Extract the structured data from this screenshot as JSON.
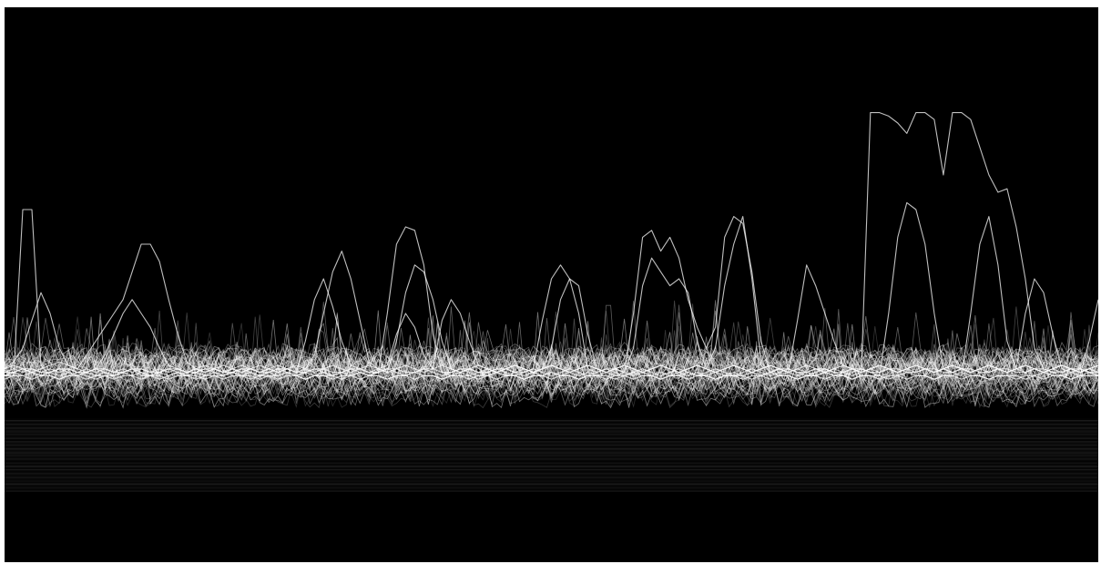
{
  "chart_data": {
    "type": "line",
    "title": "",
    "xlabel": "",
    "ylabel": "",
    "grid": false,
    "legend": "none",
    "x_range": [
      0,
      120
    ],
    "y_range": [
      0,
      1
    ],
    "colors": {
      "background": "#000000",
      "line": "#ffffff"
    },
    "series": [
      {
        "values": [
          0.12,
          0.12,
          0.6,
          0.6,
          0.15,
          0.12,
          0.11,
          0.12,
          0.13,
          0.12,
          0.11,
          0.12,
          0.12,
          0.13,
          0.14,
          0.12,
          0.12,
          0.11,
          0.12,
          0.13,
          0.12,
          0.12,
          0.11,
          0.12,
          0.12,
          0.13,
          0.12,
          0.12,
          0.11,
          0.12,
          0.12,
          0.13,
          0.12,
          0.11,
          0.12,
          0.12,
          0.12,
          0.11,
          0.12,
          0.13,
          0.12,
          0.12,
          0.11,
          0.12,
          0.12,
          0.13,
          0.12,
          0.12,
          0.11,
          0.12,
          0.12,
          0.12,
          0.11,
          0.12,
          0.13,
          0.12,
          0.12,
          0.11,
          0.12,
          0.12,
          0.13,
          0.12,
          0.12,
          0.11,
          0.12,
          0.12,
          0.12,
          0.11,
          0.12,
          0.13,
          0.12,
          0.12,
          0.11,
          0.12,
          0.12,
          0.13,
          0.12,
          0.12,
          0.11,
          0.12,
          0.12,
          0.12,
          0.11,
          0.12,
          0.13,
          0.12,
          0.12,
          0.11,
          0.12,
          0.12,
          0.13,
          0.12,
          0.12,
          0.11,
          0.12,
          0.12,
          0.12,
          0.11,
          0.12,
          0.13,
          0.12,
          0.12,
          0.11,
          0.12,
          0.12,
          0.13,
          0.12,
          0.12,
          0.11,
          0.12,
          0.12,
          0.12,
          0.11,
          0.12,
          0.13,
          0.12,
          0.12,
          0.11,
          0.12,
          0.12,
          0.12
        ]
      },
      {
        "values": [
          0.14,
          0.15,
          0.14,
          0.13,
          0.14,
          0.15,
          0.16,
          0.15,
          0.14,
          0.18,
          0.22,
          0.26,
          0.3,
          0.34,
          0.42,
          0.5,
          0.5,
          0.45,
          0.34,
          0.24,
          0.16,
          0.14,
          0.13,
          0.14,
          0.15,
          0.14,
          0.13,
          0.14,
          0.15,
          0.14,
          0.13,
          0.14,
          0.15,
          0.14,
          0.13,
          0.14,
          0.15,
          0.14,
          0.13,
          0.14,
          0.15,
          0.14,
          0.13,
          0.14,
          0.15,
          0.14,
          0.13,
          0.14,
          0.15,
          0.14,
          0.13,
          0.14,
          0.15,
          0.14,
          0.13,
          0.14,
          0.15,
          0.14,
          0.13,
          0.14,
          0.15,
          0.14,
          0.13,
          0.14,
          0.15,
          0.14,
          0.13,
          0.14,
          0.15,
          0.14,
          0.13,
          0.14,
          0.15,
          0.14,
          0.13,
          0.14,
          0.15,
          0.14,
          0.13,
          0.14,
          0.15,
          0.14,
          0.13,
          0.14,
          0.15,
          0.14,
          0.13,
          0.14,
          0.15,
          0.14,
          0.13,
          0.14,
          0.15,
          0.14,
          0.13,
          0.14,
          0.15,
          0.14,
          0.13,
          0.14,
          0.15,
          0.14,
          0.13,
          0.14,
          0.15,
          0.14,
          0.13,
          0.14,
          0.15,
          0.14,
          0.13,
          0.14,
          0.15,
          0.14,
          0.13,
          0.14,
          0.15,
          0.14,
          0.13,
          0.14,
          0.15
        ]
      },
      {
        "values": [
          0.13,
          0.14,
          0.13,
          0.14,
          0.13,
          0.14,
          0.13,
          0.14,
          0.13,
          0.14,
          0.13,
          0.14,
          0.13,
          0.14,
          0.13,
          0.14,
          0.13,
          0.14,
          0.13,
          0.14,
          0.13,
          0.14,
          0.13,
          0.14,
          0.13,
          0.14,
          0.13,
          0.14,
          0.13,
          0.14,
          0.13,
          0.14,
          0.13,
          0.14,
          0.18,
          0.3,
          0.42,
          0.48,
          0.4,
          0.28,
          0.16,
          0.14,
          0.13,
          0.22,
          0.36,
          0.44,
          0.42,
          0.34,
          0.22,
          0.14,
          0.13,
          0.14,
          0.13,
          0.14,
          0.13,
          0.14,
          0.13,
          0.14,
          0.13,
          0.14,
          0.2,
          0.34,
          0.4,
          0.38,
          0.24,
          0.14,
          0.13,
          0.14,
          0.13,
          0.2,
          0.38,
          0.46,
          0.42,
          0.38,
          0.4,
          0.36,
          0.22,
          0.14,
          0.2,
          0.38,
          0.5,
          0.58,
          0.4,
          0.16,
          0.13,
          0.14,
          0.13,
          0.14,
          0.13,
          0.14,
          0.13,
          0.14,
          0.13,
          0.14,
          0.13,
          0.14,
          0.13,
          0.14,
          0.13,
          0.14,
          0.13,
          0.14,
          0.13,
          0.14,
          0.13,
          0.14,
          0.13,
          0.14,
          0.13,
          0.14,
          0.13,
          0.14,
          0.13,
          0.14,
          0.13,
          0.14,
          0.13,
          0.14,
          0.13,
          0.14,
          0.13
        ]
      },
      {
        "values": [
          0.12,
          0.13,
          0.12,
          0.13,
          0.12,
          0.13,
          0.12,
          0.13,
          0.12,
          0.13,
          0.12,
          0.13,
          0.12,
          0.13,
          0.12,
          0.13,
          0.12,
          0.13,
          0.12,
          0.13,
          0.12,
          0.13,
          0.12,
          0.13,
          0.12,
          0.13,
          0.12,
          0.13,
          0.12,
          0.13,
          0.12,
          0.13,
          0.12,
          0.13,
          0.12,
          0.13,
          0.12,
          0.13,
          0.12,
          0.13,
          0.12,
          0.13,
          0.3,
          0.5,
          0.55,
          0.54,
          0.44,
          0.24,
          0.13,
          0.12,
          0.13,
          0.12,
          0.13,
          0.12,
          0.13,
          0.12,
          0.13,
          0.12,
          0.13,
          0.12,
          0.13,
          0.12,
          0.13,
          0.12,
          0.13,
          0.12,
          0.13,
          0.12,
          0.13,
          0.12,
          0.13,
          0.12,
          0.13,
          0.12,
          0.13,
          0.12,
          0.13,
          0.12,
          0.13,
          0.12,
          0.13,
          0.12,
          0.13,
          0.12,
          0.13,
          0.12,
          0.13,
          0.12,
          0.13,
          0.12,
          0.13,
          0.12,
          0.13,
          0.12,
          0.13,
          0.88,
          0.88,
          0.87,
          0.85,
          0.82,
          0.88,
          0.88,
          0.86,
          0.7,
          0.88,
          0.88,
          0.86,
          0.78,
          0.7,
          0.65,
          0.66,
          0.55,
          0.4,
          0.2,
          0.14,
          0.13,
          0.12,
          0.13,
          0.12,
          0.13,
          0.12
        ]
      },
      {
        "values": [
          0.12,
          0.13,
          0.14,
          0.13,
          0.12,
          0.13,
          0.14,
          0.13,
          0.12,
          0.13,
          0.14,
          0.13,
          0.12,
          0.13,
          0.14,
          0.13,
          0.12,
          0.13,
          0.14,
          0.13,
          0.12,
          0.13,
          0.14,
          0.13,
          0.12,
          0.13,
          0.14,
          0.13,
          0.12,
          0.13,
          0.14,
          0.13,
          0.12,
          0.13,
          0.14,
          0.13,
          0.12,
          0.13,
          0.14,
          0.13,
          0.12,
          0.13,
          0.14,
          0.13,
          0.12,
          0.13,
          0.14,
          0.13,
          0.12,
          0.13,
          0.14,
          0.13,
          0.12,
          0.13,
          0.14,
          0.13,
          0.12,
          0.13,
          0.14,
          0.13,
          0.12,
          0.13,
          0.14,
          0.13,
          0.12,
          0.13,
          0.14,
          0.13,
          0.12,
          0.13,
          0.14,
          0.13,
          0.12,
          0.13,
          0.14,
          0.13,
          0.12,
          0.13,
          0.14,
          0.13,
          0.12,
          0.13,
          0.14,
          0.13,
          0.12,
          0.13,
          0.14,
          0.13,
          0.12,
          0.13,
          0.14,
          0.13,
          0.12,
          0.13,
          0.14,
          0.13,
          0.12,
          0.3,
          0.52,
          0.62,
          0.6,
          0.5,
          0.3,
          0.14,
          0.13,
          0.12,
          0.3,
          0.5,
          0.58,
          0.44,
          0.22,
          0.14,
          0.3,
          0.4,
          0.36,
          0.24,
          0.14,
          0.13,
          0.14,
          0.13,
          0.12
        ]
      },
      {
        "values": [
          0.14,
          0.16,
          0.2,
          0.28,
          0.36,
          0.3,
          0.2,
          0.15,
          0.14,
          0.13,
          0.14,
          0.18,
          0.24,
          0.3,
          0.34,
          0.3,
          0.26,
          0.2,
          0.15,
          0.14,
          0.13,
          0.14,
          0.15,
          0.14,
          0.13,
          0.14,
          0.15,
          0.14,
          0.13,
          0.14,
          0.15,
          0.14,
          0.13,
          0.22,
          0.34,
          0.4,
          0.32,
          0.22,
          0.15,
          0.14,
          0.13,
          0.14,
          0.15,
          0.24,
          0.3,
          0.26,
          0.18,
          0.14,
          0.28,
          0.34,
          0.3,
          0.22,
          0.15,
          0.14,
          0.13,
          0.14,
          0.15,
          0.14,
          0.13,
          0.14,
          0.15,
          0.14,
          0.13,
          0.14,
          0.15,
          0.14,
          0.13,
          0.14,
          0.15,
          0.14,
          0.13,
          0.14,
          0.15,
          0.14,
          0.13,
          0.14,
          0.15,
          0.14,
          0.13,
          0.14,
          0.15,
          0.14,
          0.13,
          0.14,
          0.15,
          0.14,
          0.13,
          0.28,
          0.44,
          0.38,
          0.3,
          0.22,
          0.15,
          0.14,
          0.13,
          0.14,
          0.15,
          0.14,
          0.13,
          0.14,
          0.15,
          0.14,
          0.13,
          0.14,
          0.15,
          0.14,
          0.13,
          0.14,
          0.15,
          0.14,
          0.13,
          0.14,
          0.15,
          0.14,
          0.13,
          0.14,
          0.15,
          0.14,
          0.13,
          0.14,
          0.15
        ]
      },
      {
        "values": [
          0.13,
          0.13,
          0.14,
          0.14,
          0.13,
          0.13,
          0.14,
          0.14,
          0.13,
          0.13,
          0.14,
          0.14,
          0.13,
          0.13,
          0.14,
          0.14,
          0.13,
          0.13,
          0.14,
          0.14,
          0.13,
          0.13,
          0.14,
          0.14,
          0.13,
          0.13,
          0.14,
          0.14,
          0.13,
          0.13,
          0.14,
          0.14,
          0.13,
          0.13,
          0.14,
          0.14,
          0.13,
          0.13,
          0.14,
          0.14,
          0.13,
          0.13,
          0.14,
          0.14,
          0.13,
          0.13,
          0.14,
          0.14,
          0.13,
          0.13,
          0.14,
          0.14,
          0.13,
          0.13,
          0.14,
          0.14,
          0.13,
          0.13,
          0.14,
          0.28,
          0.4,
          0.44,
          0.4,
          0.3,
          0.14,
          0.13,
          0.14,
          0.14,
          0.13,
          0.3,
          0.52,
          0.54,
          0.48,
          0.52,
          0.46,
          0.34,
          0.26,
          0.2,
          0.26,
          0.52,
          0.58,
          0.56,
          0.42,
          0.22,
          0.13,
          0.14,
          0.14,
          0.13,
          0.13,
          0.14,
          0.14,
          0.13,
          0.13,
          0.14,
          0.14,
          0.13,
          0.13,
          0.14,
          0.14,
          0.13,
          0.13,
          0.14,
          0.14,
          0.13,
          0.13,
          0.14,
          0.14,
          0.13,
          0.13,
          0.14,
          0.14,
          0.13,
          0.13,
          0.14,
          0.14,
          0.13,
          0.13,
          0.14,
          0.14,
          0.13,
          0.13
        ]
      },
      {
        "values": [
          0.11,
          0.12,
          0.12,
          0.11,
          0.12,
          0.12,
          0.11,
          0.12,
          0.12,
          0.11,
          0.12,
          0.12,
          0.11,
          0.12,
          0.12,
          0.11,
          0.12,
          0.12,
          0.11,
          0.12,
          0.12,
          0.11,
          0.12,
          0.12,
          0.11,
          0.12,
          0.12,
          0.11,
          0.12,
          0.12,
          0.11,
          0.12,
          0.12,
          0.11,
          0.12,
          0.12,
          0.11,
          0.12,
          0.12,
          0.11,
          0.12,
          0.12,
          0.11,
          0.12,
          0.12,
          0.11,
          0.12,
          0.12,
          0.11,
          0.12,
          0.12,
          0.11,
          0.12,
          0.12,
          0.11,
          0.12,
          0.12,
          0.11,
          0.12,
          0.12,
          0.11,
          0.12,
          0.12,
          0.11,
          0.12,
          0.12,
          0.11,
          0.12,
          0.12,
          0.11,
          0.12,
          0.12,
          0.11,
          0.12,
          0.12,
          0.11,
          0.12,
          0.12,
          0.11,
          0.12,
          0.12,
          0.11,
          0.12,
          0.12,
          0.11,
          0.12,
          0.12,
          0.11,
          0.12,
          0.12,
          0.11,
          0.12,
          0.12,
          0.11,
          0.12,
          0.12,
          0.11,
          0.12,
          0.12,
          0.11,
          0.12,
          0.12,
          0.11,
          0.12,
          0.12,
          0.11,
          0.12,
          0.12,
          0.11,
          0.12,
          0.12,
          0.11,
          0.12,
          0.12,
          0.11,
          0.12,
          0.12,
          0.11,
          0.12,
          0.22,
          0.34
        ]
      }
    ]
  }
}
